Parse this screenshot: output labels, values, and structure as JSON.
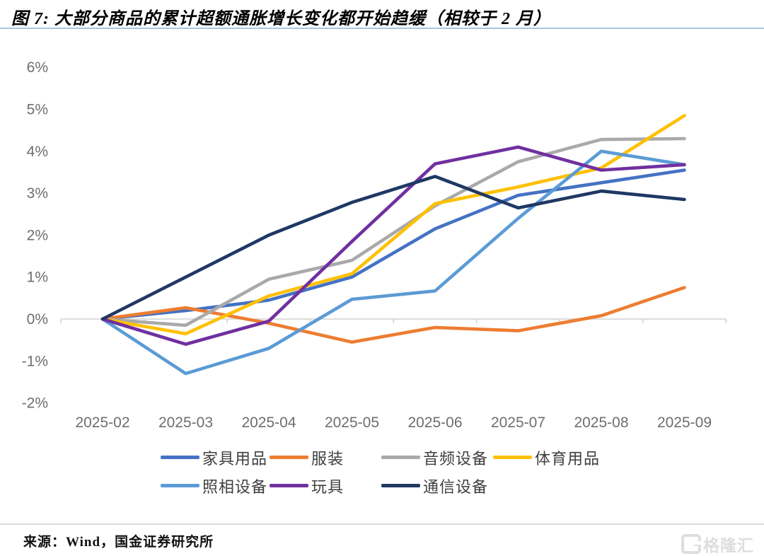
{
  "title": "图 7: 大部分商品的累计超额通胀增长变化都开始趋缓（相较于 2 月）",
  "source": "来源：Wind，国金证券研究所",
  "watermark": "格隆汇",
  "accent_colors": {
    "title_separator": "#aac7dd",
    "axis_line": "#d2d2d2",
    "axis_label": "#6e6e6e",
    "legend_text": "#3f3f3f"
  },
  "chart_data": {
    "type": "line",
    "title": "",
    "x": [
      "2025-02",
      "2025-03",
      "2025-04",
      "2025-05",
      "2025-06",
      "2025-07",
      "2025-08",
      "2025-09"
    ],
    "series": [
      {
        "name": "家具用品",
        "color": "#4472C4",
        "values": [
          0,
          0.2,
          0.45,
          1.0,
          2.15,
          2.95,
          3.25,
          3.55
        ]
      },
      {
        "name": "服装",
        "color": "#ED7D31",
        "values": [
          0,
          0.27,
          -0.1,
          -0.55,
          -0.2,
          -0.28,
          0.08,
          0.75
        ]
      },
      {
        "name": "音频设备",
        "color": "#A9A9A9",
        "values": [
          0,
          -0.15,
          0.95,
          1.4,
          2.7,
          3.75,
          4.28,
          4.3
        ]
      },
      {
        "name": "体育用品",
        "color": "#FFC000",
        "values": [
          0,
          -0.35,
          0.55,
          1.08,
          2.75,
          3.15,
          3.6,
          4.85
        ]
      },
      {
        "name": "照相设备",
        "color": "#5B9BD5",
        "values": [
          0,
          -1.3,
          -0.7,
          0.47,
          0.67,
          2.4,
          4.0,
          3.68
        ]
      },
      {
        "name": "玩具",
        "color": "#7030A0",
        "values": [
          0,
          -0.6,
          -0.05,
          1.85,
          3.7,
          4.1,
          3.55,
          3.68
        ]
      },
      {
        "name": "通信设备",
        "color": "#1F3864",
        "values": [
          0,
          1.0,
          2.0,
          2.78,
          3.4,
          2.65,
          3.05,
          2.85
        ]
      }
    ],
    "ylim": [
      -2,
      6
    ],
    "ytick_step": 1,
    "ytick_suffix": "%",
    "xlabel": "",
    "ylabel": "",
    "grid": "zero-line-only",
    "legend_position": "bottom"
  }
}
